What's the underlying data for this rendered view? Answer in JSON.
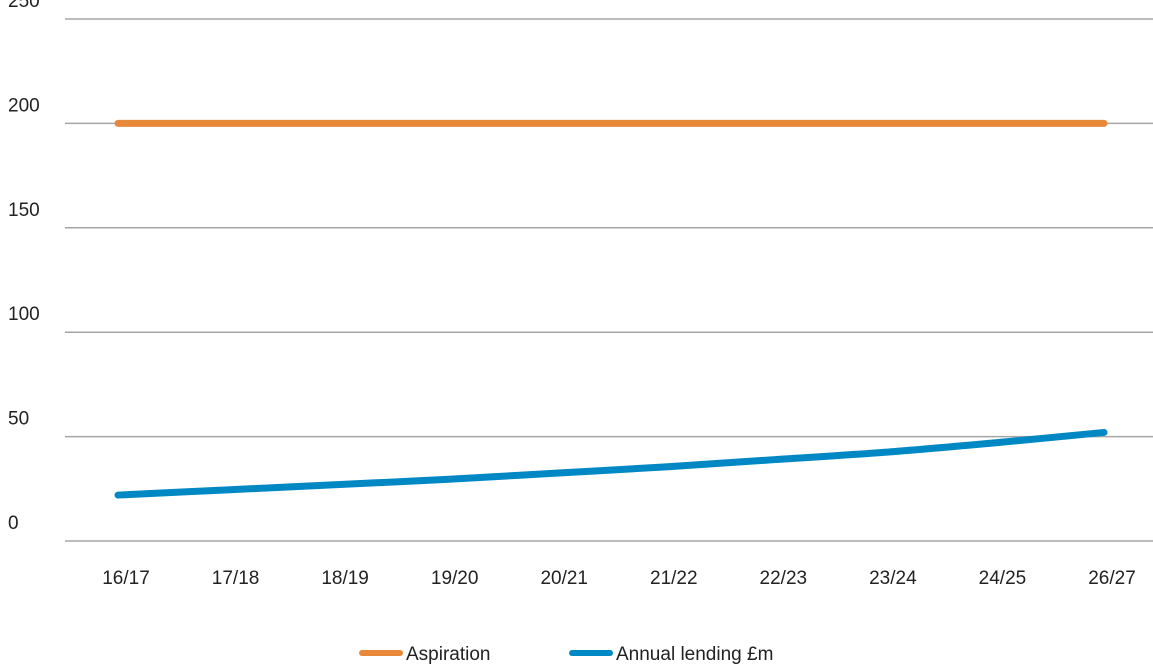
{
  "chart_data": {
    "type": "line",
    "categories": [
      "16/17",
      "17/18",
      "18/19",
      "19/20",
      "20/21",
      "21/22",
      "22/23",
      "23/24",
      "24/25",
      "26/27"
    ],
    "series": [
      {
        "name": "Aspiration",
        "color": "#E8893A",
        "values": [
          200,
          200,
          200,
          200,
          200,
          200,
          200,
          200,
          200,
          200
        ]
      },
      {
        "name": "Annual lending £m",
        "color": "#0088C4",
        "values": [
          22,
          24.5,
          27,
          29.5,
          32.5,
          35.5,
          39,
          42.5,
          47,
          52
        ]
      }
    ],
    "y_ticks": [
      "0",
      "50",
      "100",
      "150",
      "200",
      "250"
    ],
    "ylim": [
      0,
      250
    ],
    "grid": "horizontal",
    "legend": "bottom-center",
    "gridline_color": "#A6A6A6"
  }
}
